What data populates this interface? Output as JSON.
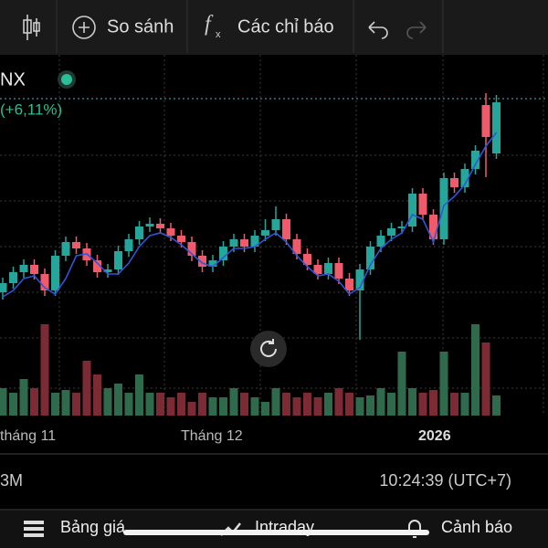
{
  "toolbar": {
    "compare": "So sánh",
    "indicators": "Các chỉ báo"
  },
  "symbol": "NX",
  "change": "(+6,11%)",
  "chart_data": {
    "type": "candlestick",
    "x_labels": [
      "tháng 11",
      "Tháng 12",
      "2026"
    ],
    "open": [
      80,
      90,
      102,
      110,
      100,
      82,
      120,
      135,
      128,
      115,
      102,
      105,
      125,
      138,
      152,
      155,
      150,
      142,
      135,
      120,
      108,
      115,
      130,
      138,
      130,
      142,
      148,
      160,
      138,
      122,
      110,
      100,
      112,
      95,
      82,
      105,
      130,
      142,
      150,
      152,
      188,
      165,
      138,
      205,
      195,
      215,
      285,
      232
    ],
    "high": [
      96,
      108,
      116,
      116,
      106,
      126,
      141,
      141,
      134,
      121,
      111,
      131,
      144,
      158,
      162,
      161,
      156,
      148,
      141,
      126,
      121,
      136,
      144,
      144,
      148,
      160,
      174,
      166,
      144,
      128,
      116,
      118,
      118,
      101,
      111,
      136,
      148,
      156,
      158,
      194,
      194,
      171,
      211,
      211,
      221,
      241,
      298,
      296
    ],
    "low": [
      72,
      84,
      96,
      94,
      76,
      76,
      114,
      122,
      109,
      96,
      96,
      99,
      119,
      132,
      146,
      144,
      136,
      129,
      114,
      102,
      102,
      109,
      124,
      124,
      124,
      136,
      142,
      132,
      116,
      104,
      94,
      94,
      89,
      76,
      28,
      99,
      124,
      136,
      144,
      146,
      159,
      132,
      132,
      189,
      189,
      209,
      206,
      226
    ],
    "close": [
      90,
      102,
      110,
      100,
      82,
      120,
      135,
      128,
      115,
      102,
      105,
      125,
      138,
      152,
      155,
      150,
      142,
      135,
      120,
      108,
      115,
      130,
      138,
      130,
      142,
      148,
      160,
      138,
      122,
      110,
      100,
      112,
      95,
      82,
      105,
      130,
      142,
      150,
      152,
      188,
      165,
      138,
      205,
      195,
      215,
      235,
      250,
      288
    ],
    "ma": [
      75,
      82,
      95,
      98,
      85,
      78,
      95,
      120,
      122,
      112,
      100,
      100,
      112,
      130,
      142,
      145,
      140,
      132,
      122,
      112,
      108,
      118,
      128,
      128,
      130,
      138,
      145,
      135,
      120,
      108,
      98,
      100,
      92,
      78,
      85,
      110,
      128,
      138,
      145,
      165,
      160,
      135,
      175,
      185,
      198,
      220,
      240,
      255
    ],
    "volume": [
      30,
      25,
      40,
      30,
      100,
      25,
      28,
      25,
      60,
      45,
      30,
      35,
      25,
      45,
      25,
      25,
      20,
      25,
      15,
      25,
      20,
      20,
      30,
      25,
      20,
      15,
      30,
      25,
      20,
      25,
      20,
      25,
      30,
      25,
      20,
      22,
      30,
      25,
      70,
      30,
      25,
      28,
      70,
      25,
      25,
      100,
      80,
      22
    ],
    "price_line": 292,
    "ylim": [
      0,
      340
    ],
    "vlim": [
      0,
      100
    ],
    "up_color": "#26a69a",
    "down_color": "#ef5b6b",
    "ma_color": "#2f56d6",
    "vol_up_color": "#2f6a4c",
    "vol_down_color": "#7c2a34"
  },
  "status": {
    "volume": "3M",
    "time": "10:24:39 (UTC+7)"
  },
  "nav": {
    "board": "Bảng giá",
    "intraday": "Intraday",
    "alert": "Cảnh báo"
  }
}
